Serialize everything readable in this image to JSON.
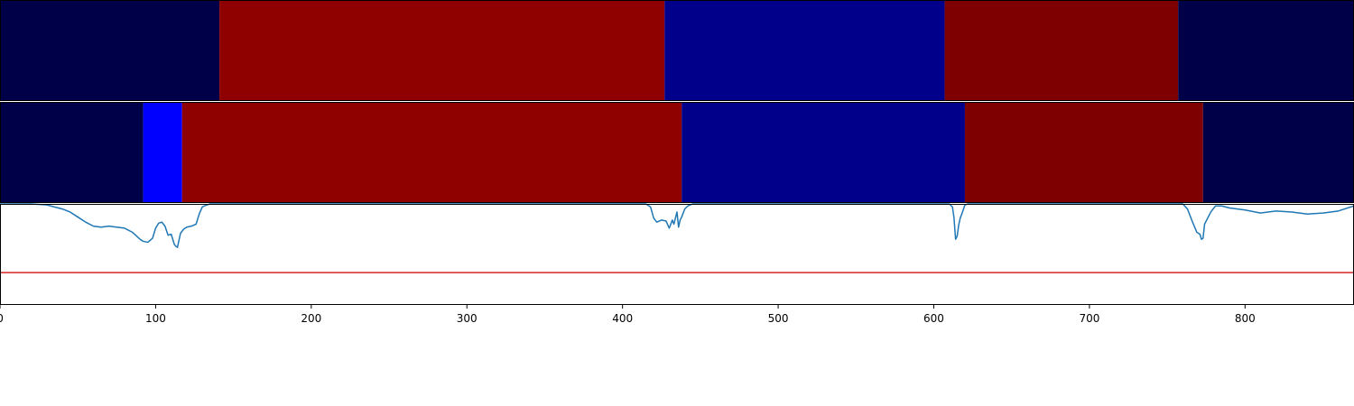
{
  "chart_data": [
    {
      "type": "heatmap",
      "xlim": [
        0,
        870
      ],
      "segments": [
        {
          "start": 0,
          "end": 141,
          "color": "#000048"
        },
        {
          "start": 141,
          "end": 427,
          "color": "#8f0000"
        },
        {
          "start": 427,
          "end": 607,
          "color": "#00008a"
        },
        {
          "start": 607,
          "end": 757,
          "color": "#7e0000"
        },
        {
          "start": 757,
          "end": 870,
          "color": "#000048"
        }
      ]
    },
    {
      "type": "heatmap",
      "xlim": [
        0,
        870
      ],
      "segments": [
        {
          "start": 0,
          "end": 92,
          "color": "#000048"
        },
        {
          "start": 92,
          "end": 117,
          "color": "#0000ff"
        },
        {
          "start": 117,
          "end": 438,
          "color": "#8f0000"
        },
        {
          "start": 438,
          "end": 620,
          "color": "#00008a"
        },
        {
          "start": 620,
          "end": 773,
          "color": "#7e0000"
        },
        {
          "start": 773,
          "end": 870,
          "color": "#000048"
        }
      ]
    },
    {
      "type": "line",
      "xlim": [
        0,
        870
      ],
      "ylim": [
        0,
        1
      ],
      "series": [
        {
          "color": "#1f77b4",
          "x": [
            0,
            20,
            30,
            35,
            40,
            45,
            50,
            55,
            60,
            65,
            70,
            75,
            80,
            85,
            90,
            92,
            95,
            98,
            100,
            102,
            104,
            106,
            108,
            110,
            112,
            113,
            114,
            116,
            118,
            120,
            123,
            126,
            128,
            130,
            133,
            135,
            140,
            150,
            200,
            250,
            300,
            350,
            400,
            415,
            418,
            420,
            422,
            425,
            428,
            430,
            432,
            433,
            434,
            435,
            436,
            437,
            438,
            440,
            442,
            445,
            450,
            500,
            550,
            600,
            610,
            612,
            613,
            614,
            615,
            616,
            617,
            618,
            620,
            622,
            625,
            630,
            640,
            700,
            750,
            760,
            763,
            766,
            769,
            771,
            772,
            773,
            774,
            776,
            778,
            781,
            785,
            790,
            800,
            810,
            820,
            830,
            840,
            850,
            860,
            870
          ],
          "y": [
            1.0,
            1.0,
            0.99,
            0.97,
            0.95,
            0.92,
            0.87,
            0.82,
            0.78,
            0.77,
            0.78,
            0.77,
            0.76,
            0.72,
            0.65,
            0.63,
            0.62,
            0.66,
            0.76,
            0.81,
            0.82,
            0.78,
            0.69,
            0.7,
            0.6,
            0.58,
            0.57,
            0.71,
            0.75,
            0.77,
            0.78,
            0.8,
            0.9,
            0.97,
            0.99,
            1.0,
            1.0,
            1.0,
            1.0,
            1.0,
            1.0,
            1.0,
            1.0,
            1.0,
            0.97,
            0.86,
            0.82,
            0.84,
            0.83,
            0.76,
            0.84,
            0.8,
            0.86,
            0.92,
            0.77,
            0.84,
            0.87,
            0.95,
            0.98,
            1.0,
            1.0,
            1.0,
            1.0,
            1.0,
            1.0,
            0.97,
            0.86,
            0.65,
            0.68,
            0.79,
            0.86,
            0.9,
            0.99,
            1.0,
            1.0,
            1.0,
            1.0,
            1.0,
            1.0,
            1.0,
            0.95,
            0.83,
            0.72,
            0.7,
            0.65,
            0.66,
            0.8,
            0.86,
            0.92,
            0.98,
            0.98,
            0.96,
            0.94,
            0.91,
            0.93,
            0.92,
            0.9,
            0.91,
            0.93,
            0.98
          ]
        }
      ],
      "threshold": {
        "y": 0.32,
        "color": "#d62728"
      },
      "xticks": [
        0,
        100,
        200,
        300,
        400,
        500,
        600,
        700,
        800
      ],
      "xticklabels": [
        "0",
        "100",
        "200",
        "300",
        "400",
        "500",
        "600",
        "700",
        "800"
      ]
    }
  ]
}
